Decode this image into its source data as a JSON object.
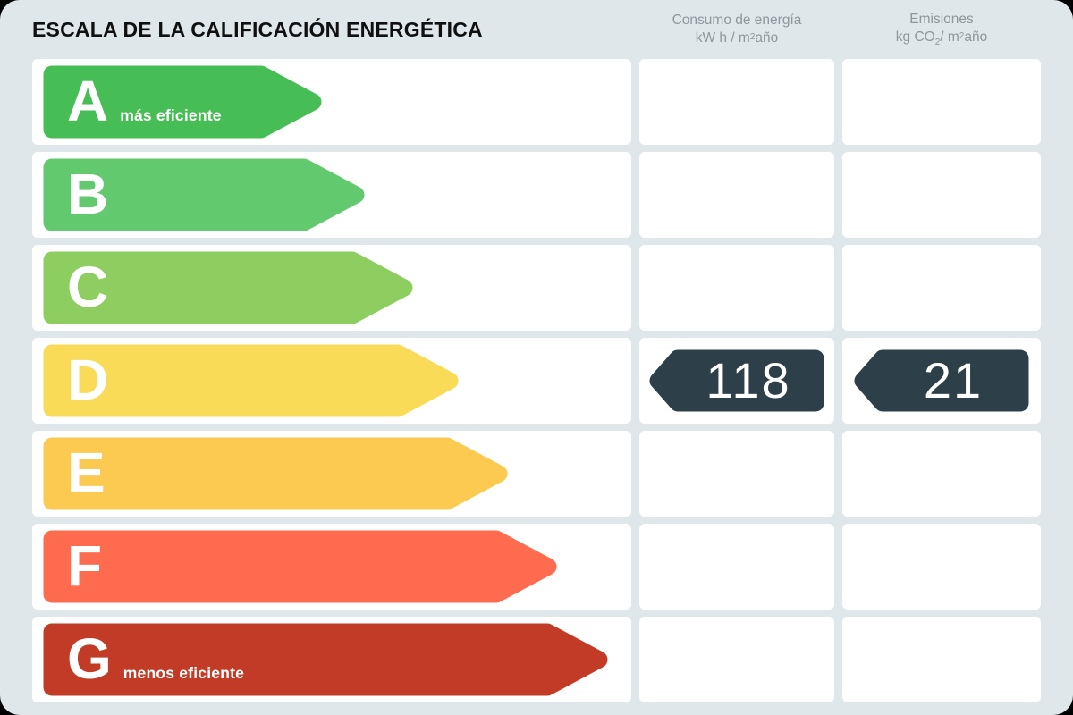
{
  "page": {
    "title": "ESCALA DE LA CALIFICACIÓN ENERGÉTICA"
  },
  "theme": {
    "card_bg": "#dfe7ea",
    "panel_bg": "#ffffff",
    "title_color": "#101010",
    "header_color": "#8d979c",
    "badge_bg": "#2d4049",
    "badge_text": "#ffffff",
    "bar_text": "#ffffff",
    "outside_bg": "#000000"
  },
  "headers": {
    "consumption": {
      "title": "Consumo de energía",
      "unit_prefix": "kW h / m",
      "unit_sup": "2",
      "unit_suffix": "año"
    },
    "emissions": {
      "title": "Emisiones",
      "unit_prefix": "kg CO",
      "unit_sub": "2",
      "unit_mid": "/ m",
      "unit_sup": "2",
      "unit_suffix": "año"
    }
  },
  "scale": {
    "rows": [
      {
        "letter": "A",
        "label": "más eficiente",
        "color": "#47bd55",
        "bar_length": 312,
        "consumption": null,
        "emissions": null
      },
      {
        "letter": "B",
        "label": null,
        "color": "#62c96f",
        "bar_length": 360,
        "consumption": null,
        "emissions": null
      },
      {
        "letter": "C",
        "label": null,
        "color": "#8ece60",
        "bar_length": 414,
        "consumption": null,
        "emissions": null
      },
      {
        "letter": "D",
        "label": null,
        "color": "#fadb58",
        "bar_length": 465,
        "consumption": "118",
        "emissions": "21"
      },
      {
        "letter": "E",
        "label": null,
        "color": "#fcca50",
        "bar_length": 520,
        "consumption": null,
        "emissions": null
      },
      {
        "letter": "F",
        "label": null,
        "color": "#fe6b4f",
        "bar_length": 575,
        "consumption": null,
        "emissions": null
      },
      {
        "letter": "G",
        "label": "menos eficiente",
        "color": "#c23b26",
        "bar_length": 632,
        "consumption": null,
        "emissions": null
      }
    ]
  },
  "chart_data": {
    "type": "bar",
    "title": "ESCALA DE LA CALIFICACIÓN ENERGÉTICA",
    "categories": [
      "A",
      "B",
      "C",
      "D",
      "E",
      "F",
      "G"
    ],
    "category_colors": [
      "#47bd55",
      "#62c96f",
      "#8ece60",
      "#fadb58",
      "#fcca50",
      "#fe6b4f",
      "#c23b26"
    ],
    "series": [
      {
        "name": "Consumo de energía kW h / m2año",
        "values": [
          null,
          null,
          null,
          118,
          null,
          null,
          null
        ]
      },
      {
        "name": "Emisiones kg CO2/ m2año",
        "values": [
          null,
          null,
          null,
          21,
          null,
          null,
          null
        ]
      }
    ],
    "assigned_rating": "D",
    "annotations": [
      "A = más eficiente",
      "G = menos eficiente"
    ],
    "legend_position": "top",
    "grid": false
  }
}
